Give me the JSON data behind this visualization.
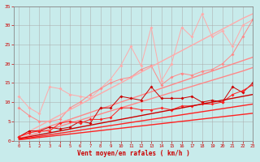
{
  "bg_color": "#c8ebeb",
  "grid_color": "#aaaaaa",
  "xlabel": "Vent moyen/en rafales ( km/h )",
  "xlim": [
    -0.5,
    23
  ],
  "ylim": [
    0,
    35
  ],
  "yticks": [
    0,
    5,
    10,
    15,
    20,
    25,
    30,
    35
  ],
  "xticks": [
    0,
    1,
    2,
    3,
    4,
    5,
    6,
    7,
    8,
    9,
    10,
    11,
    12,
    13,
    14,
    15,
    16,
    17,
    18,
    19,
    20,
    21,
    22,
    23
  ],
  "x": [
    0,
    1,
    2,
    3,
    4,
    5,
    6,
    7,
    8,
    9,
    10,
    11,
    12,
    13,
    14,
    15,
    16,
    17,
    18,
    19,
    20,
    21,
    22,
    23
  ],
  "light1_y": [
    11.5,
    8.5,
    7.0,
    14.0,
    13.5,
    12.0,
    11.5,
    11.0,
    13.5,
    16.0,
    19.5,
    24.5,
    19.5,
    29.5,
    15.5,
    20.0,
    29.5,
    27.0,
    33.0,
    27.0,
    28.5,
    24.5,
    30.0,
    31.5
  ],
  "light2_y": [
    8.5,
    6.5,
    5.0,
    5.0,
    5.5,
    8.5,
    10.0,
    12.0,
    13.5,
    15.0,
    16.0,
    16.5,
    18.5,
    19.5,
    14.5,
    16.5,
    17.5,
    17.0,
    18.0,
    18.5,
    20.0,
    22.5,
    27.0,
    31.5
  ],
  "light_trend1_y": [
    1.0,
    2.4,
    3.8,
    5.2,
    6.6,
    8.0,
    9.4,
    10.8,
    12.2,
    13.6,
    15.0,
    16.4,
    17.8,
    19.2,
    20.6,
    22.0,
    23.4,
    24.8,
    26.2,
    27.6,
    29.0,
    30.4,
    31.8,
    33.0
  ],
  "light_trend2_y": [
    1.0,
    1.9,
    2.8,
    3.7,
    4.6,
    5.5,
    6.4,
    7.3,
    8.2,
    9.1,
    10.0,
    10.9,
    11.8,
    12.7,
    13.6,
    14.5,
    15.4,
    16.3,
    17.2,
    18.1,
    19.0,
    19.9,
    20.8,
    21.7
  ],
  "light_trend3_y": [
    0.5,
    1.3,
    2.1,
    2.9,
    3.7,
    4.5,
    5.3,
    6.1,
    6.9,
    7.7,
    8.5,
    9.3,
    10.1,
    10.9,
    11.7,
    12.5,
    13.3,
    14.1,
    14.9,
    15.7,
    16.5,
    17.3,
    18.1,
    19.0
  ],
  "dark1_y": [
    1.0,
    2.5,
    2.5,
    3.5,
    3.0,
    3.5,
    5.0,
    4.5,
    8.5,
    8.5,
    11.5,
    11.0,
    10.5,
    14.0,
    11.0,
    11.0,
    11.0,
    11.5,
    10.0,
    10.5,
    10.0,
    14.0,
    12.5,
    15.0
  ],
  "dark2_y": [
    1.0,
    2.0,
    2.5,
    2.5,
    4.5,
    5.0,
    4.5,
    5.5,
    5.5,
    6.0,
    8.5,
    8.5,
    8.0,
    8.0,
    8.5,
    8.0,
    9.0,
    9.0,
    9.5,
    9.5,
    10.0,
    12.0,
    13.0,
    14.5
  ],
  "dark_trend1_y": [
    0.5,
    1.0,
    1.5,
    2.0,
    2.5,
    3.0,
    3.5,
    4.0,
    4.5,
    5.0,
    5.5,
    6.0,
    6.5,
    7.0,
    7.5,
    8.0,
    8.5,
    9.0,
    9.5,
    10.0,
    10.5,
    11.0,
    11.5,
    12.0
  ],
  "dark_trend2_y": [
    0.3,
    0.7,
    1.1,
    1.5,
    1.9,
    2.3,
    2.7,
    3.1,
    3.5,
    3.9,
    4.3,
    4.7,
    5.1,
    5.5,
    5.9,
    6.3,
    6.7,
    7.1,
    7.5,
    7.9,
    8.3,
    8.7,
    9.1,
    9.5
  ],
  "dark_trend3_y": [
    0.2,
    0.5,
    0.8,
    1.1,
    1.4,
    1.7,
    2.0,
    2.3,
    2.6,
    2.9,
    3.2,
    3.5,
    3.8,
    4.1,
    4.4,
    4.7,
    5.0,
    5.3,
    5.6,
    5.9,
    6.2,
    6.5,
    6.8,
    7.1
  ],
  "col_light1": "#ffaaaa",
  "col_light2": "#ff8888",
  "col_dark1": "#cc0000",
  "col_dark2": "#ff2222",
  "xlabel_color": "#cc0000",
  "tick_color": "#cc0000",
  "axis_color": "#888888"
}
